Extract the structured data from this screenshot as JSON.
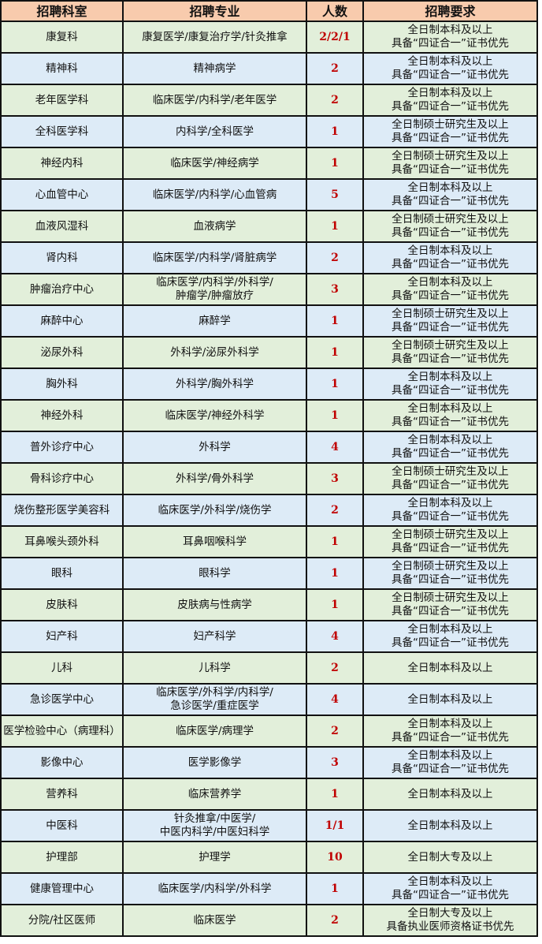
{
  "colors": {
    "header_bg": "#f8cbad",
    "row_green": "#e2efda",
    "row_blue": "#ddebf7",
    "count_text": "#c00000"
  },
  "headers": [
    "招聘科室",
    "招聘专业",
    "人数",
    "招聘要求"
  ],
  "rows": [
    {
      "dept": "康复科",
      "major": [
        "康复医学/康复治疗学/针灸推拿"
      ],
      "count": "2/2/1",
      "req": [
        "全日制本科及以上",
        "具备“四证合一”证书优先"
      ]
    },
    {
      "dept": "精神科",
      "major": [
        "精神病学"
      ],
      "count": "2",
      "req": [
        "全日制本科及以上",
        "具备“四证合一”证书优先"
      ]
    },
    {
      "dept": "老年医学科",
      "major": [
        "临床医学/内科学/老年医学"
      ],
      "count": "2",
      "req": [
        "全日制本科及以上",
        "具备“四证合一”证书优先"
      ]
    },
    {
      "dept": "全科医学科",
      "major": [
        "内科学/全科医学"
      ],
      "count": "1",
      "req": [
        "全日制硕士研究生及以上",
        "具备“四证合一”证书优先"
      ]
    },
    {
      "dept": "神经内科",
      "major": [
        "临床医学/神经病学"
      ],
      "count": "1",
      "req": [
        "全日制硕士研究生及以上",
        "具备“四证合一”证书优先"
      ]
    },
    {
      "dept": "心血管中心",
      "major": [
        "临床医学/内科学/心血管病"
      ],
      "count": "5",
      "req": [
        "全日制本科及以上",
        "具备“四证合一”证书优先"
      ]
    },
    {
      "dept": "血液风湿科",
      "major": [
        "血液病学"
      ],
      "count": "1",
      "req": [
        "全日制硕士研究生及以上",
        "具备“四证合一”证书优先"
      ]
    },
    {
      "dept": "肾内科",
      "major": [
        "临床医学/内科学/肾脏病学"
      ],
      "count": "2",
      "req": [
        "全日制本科及以上",
        "具备“四证合一”证书优先"
      ]
    },
    {
      "dept": "肿瘤治疗中心",
      "major": [
        "临床医学/内科学/外科学/",
        "肿瘤学/肿瘤放疗"
      ],
      "count": "3",
      "req": [
        "全日制本科及以上",
        "具备“四证合一”证书优先"
      ]
    },
    {
      "dept": "麻醉中心",
      "major": [
        "麻醉学"
      ],
      "count": "1",
      "req": [
        "全日制硕士研究生及以上",
        "具备“四证合一”证书优先"
      ]
    },
    {
      "dept": "泌尿外科",
      "major": [
        "外科学/泌尿外科学"
      ],
      "count": "1",
      "req": [
        "全日制硕士研究生及以上",
        "具备“四证合一”证书优先"
      ]
    },
    {
      "dept": "胸外科",
      "major": [
        "外科学/胸外科学"
      ],
      "count": "1",
      "req": [
        "全日制本科及以上",
        "具备“四证合一”证书优先"
      ]
    },
    {
      "dept": "神经外科",
      "major": [
        "临床医学/神经外科学"
      ],
      "count": "1",
      "req": [
        "全日制本科及以上",
        "具备“四证合一”证书优先"
      ]
    },
    {
      "dept": "普外诊疗中心",
      "major": [
        "外科学"
      ],
      "count": "4",
      "req": [
        "全日制本科及以上",
        "具备“四证合一”证书优先"
      ]
    },
    {
      "dept": "骨科诊疗中心",
      "major": [
        "外科学/骨外科学"
      ],
      "count": "3",
      "req": [
        "全日制硕士研究生及以上",
        "具备“四证合一”证书优先"
      ]
    },
    {
      "dept": "烧伤整形医学美容科",
      "major": [
        "临床医学/外科学/烧伤学"
      ],
      "count": "2",
      "req": [
        "全日制本科及以上",
        "具备“四证合一”证书优先"
      ]
    },
    {
      "dept": "耳鼻喉头颈外科",
      "major": [
        "耳鼻咽喉科学"
      ],
      "count": "1",
      "req": [
        "全日制硕士研究生及以上",
        "具备“四证合一”证书优先"
      ]
    },
    {
      "dept": "眼科",
      "major": [
        "眼科学"
      ],
      "count": "1",
      "req": [
        "全日制硕士研究生及以上",
        "具备“四证合一”证书优先"
      ]
    },
    {
      "dept": "皮肤科",
      "major": [
        "皮肤病与性病学"
      ],
      "count": "1",
      "req": [
        "全日制硕士研究生及以上",
        "具备“四证合一”证书优先"
      ]
    },
    {
      "dept": "妇产科",
      "major": [
        "妇产科学"
      ],
      "count": "4",
      "req": [
        "全日制本科及以上",
        "具备“四证合一”证书优先"
      ]
    },
    {
      "dept": "儿科",
      "major": [
        "儿科学"
      ],
      "count": "2",
      "req": [
        "全日制本科及以上"
      ]
    },
    {
      "dept": "急诊医学中心",
      "major": [
        "临床医学/外科学/内科学/",
        "急诊医学/重症医学"
      ],
      "count": "4",
      "req": [
        "全日制本科及以上"
      ]
    },
    {
      "dept": "医学检验中心（病理科）",
      "major": [
        "临床医学/病理学"
      ],
      "count": "2",
      "req": [
        "全日制本科及以上",
        "具备“四证合一”证书优先"
      ]
    },
    {
      "dept": "影像中心",
      "major": [
        "医学影像学"
      ],
      "count": "3",
      "req": [
        "全日制本科及以上",
        "具备“四证合一”证书优先"
      ]
    },
    {
      "dept": "营养科",
      "major": [
        "临床营养学"
      ],
      "count": "1",
      "req": [
        "全日制本科及以上"
      ]
    },
    {
      "dept": "中医科",
      "major": [
        "针灸推拿/中医学/",
        "中医内科学/中医妇科学"
      ],
      "count": "1/1",
      "req": [
        "全日制本科及以上"
      ]
    },
    {
      "dept": "护理部",
      "major": [
        "护理学"
      ],
      "count": "10",
      "req": [
        "全日制大专及以上"
      ]
    },
    {
      "dept": "健康管理中心",
      "major": [
        "临床医学/内科学/外科学"
      ],
      "count": "1",
      "req": [
        "全日制本科及以上",
        "具备“四证合一”证书优先"
      ]
    },
    {
      "dept": "分院/社区医师",
      "major": [
        "临床医学"
      ],
      "count": "2",
      "req": [
        "全日制大专及以上",
        "具备执业医师资格证书优先"
      ]
    }
  ]
}
